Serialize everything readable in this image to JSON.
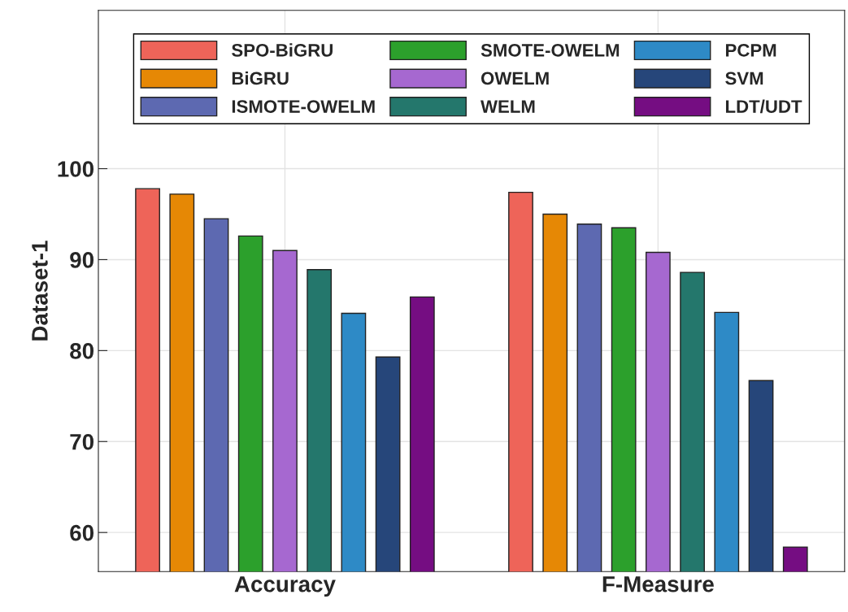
{
  "chart_data": {
    "type": "bar",
    "ylabel": "Dataset-1",
    "categories": [
      "Accuracy",
      "F-Measure"
    ],
    "series": [
      {
        "name": "SPO-BiGRU",
        "color": "#ee6459",
        "values": [
          97.8,
          97.4
        ]
      },
      {
        "name": "BiGRU",
        "color": "#e68805",
        "values": [
          97.2,
          95.0
        ]
      },
      {
        "name": "ISMOTE-OWELM",
        "color": "#5d69b1",
        "values": [
          94.5,
          93.9
        ]
      },
      {
        "name": "SMOTE-OWELM",
        "color": "#2ca02c",
        "values": [
          92.6,
          93.5
        ]
      },
      {
        "name": "OWELM",
        "color": "#a668d0",
        "values": [
          91.0,
          90.8
        ]
      },
      {
        "name": "WELM",
        "color": "#24776c",
        "values": [
          88.9,
          88.6
        ]
      },
      {
        "name": "PCPM",
        "color": "#2e8ac6",
        "values": [
          84.1,
          84.2
        ]
      },
      {
        "name": "SVM",
        "color": "#26467a",
        "values": [
          79.3,
          76.7
        ]
      },
      {
        "name": "LDT/UDT",
        "color": "#750d82",
        "values": [
          85.9,
          58.4
        ]
      }
    ],
    "ylim": [
      55.7,
      117.4
    ],
    "yticks": [
      60,
      70,
      80,
      90,
      100
    ],
    "grid": true,
    "legend": "top"
  }
}
